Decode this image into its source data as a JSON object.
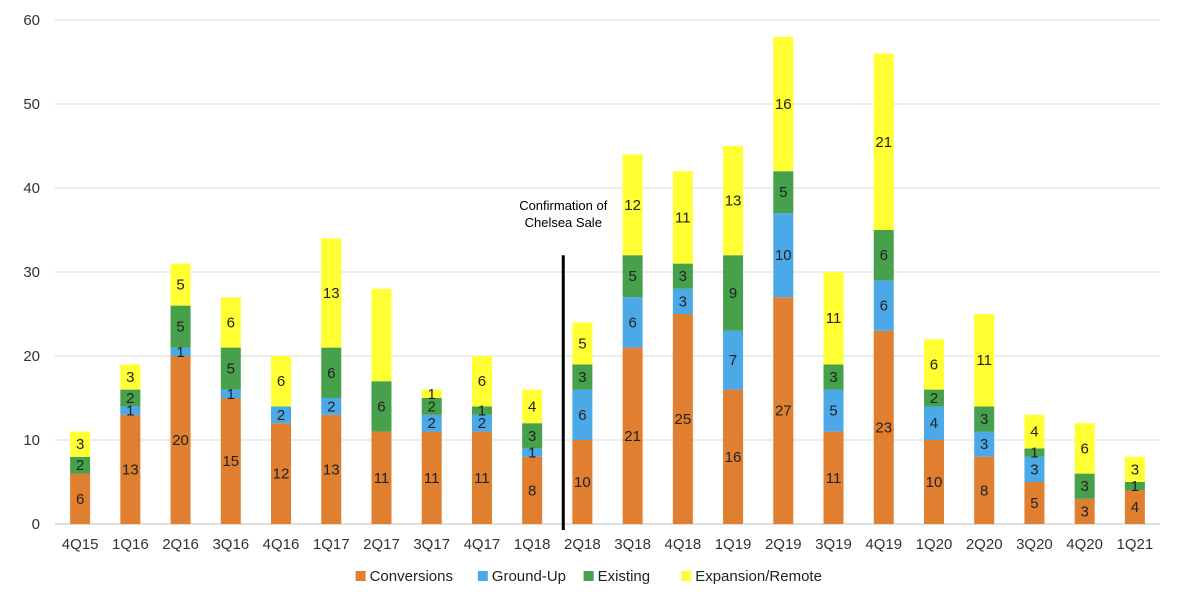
{
  "chart_data": {
    "type": "bar",
    "stacked": true,
    "title": "",
    "xlabel": "",
    "ylabel": "",
    "ylim": [
      0,
      60
    ],
    "yticks": [
      0,
      10,
      20,
      30,
      40,
      50,
      60
    ],
    "grid": "horizontal",
    "legend": "bottom",
    "categories": [
      "4Q15",
      "1Q16",
      "2Q16",
      "3Q16",
      "4Q16",
      "1Q17",
      "2Q17",
      "3Q17",
      "4Q17",
      "1Q18",
      "2Q18",
      "3Q18",
      "4Q18",
      "1Q19",
      "2Q19",
      "3Q19",
      "4Q19",
      "1Q20",
      "2Q20",
      "3Q20",
      "4Q20",
      "1Q21"
    ],
    "series": [
      {
        "name": "Conversions",
        "color": "#E07F2F",
        "values": [
          6,
          13,
          20,
          15,
          12,
          13,
          11,
          11,
          11,
          8,
          10,
          21,
          25,
          16,
          27,
          11,
          23,
          10,
          8,
          5,
          3,
          4
        ]
      },
      {
        "name": "Ground-Up",
        "color": "#4BA9E8",
        "values": [
          0,
          1,
          1,
          1,
          2,
          2,
          0,
          2,
          2,
          1,
          6,
          6,
          3,
          7,
          10,
          5,
          6,
          4,
          3,
          3,
          0,
          0
        ]
      },
      {
        "name": "Existing",
        "color": "#47A04B",
        "values": [
          2,
          2,
          5,
          5,
          0,
          6,
          6,
          2,
          1,
          3,
          3,
          5,
          3,
          9,
          5,
          3,
          6,
          2,
          3,
          1,
          3,
          1
        ]
      },
      {
        "name": "Expansion/Remote",
        "color": "#FFFF33",
        "values": [
          3,
          3,
          5,
          6,
          6,
          13,
          11,
          1,
          6,
          4,
          5,
          12,
          11,
          13,
          16,
          11,
          21,
          6,
          11,
          4,
          6,
          3
        ]
      }
    ],
    "labels": {
      "Conversions": [
        "6",
        "13",
        "20",
        "15",
        "12",
        "13",
        "11",
        "11",
        "11",
        "8",
        "10",
        "21",
        "25",
        "16",
        "27",
        "11",
        "23",
        "10",
        "8",
        "5",
        "3",
        "4"
      ],
      "Ground-Up": [
        "",
        "1",
        "1",
        "1",
        "2",
        "2",
        "",
        "2",
        "2",
        "1",
        "6",
        "6",
        "3",
        "7",
        "10",
        "5",
        "6",
        "4",
        "3",
        "3",
        "",
        ""
      ],
      "Existing": [
        "2",
        "2",
        "5",
        "5",
        "",
        "6",
        "6",
        "2",
        "1",
        "3",
        "3",
        "5",
        "3",
        "9",
        "5",
        "3",
        "6",
        "2",
        "3",
        "1",
        "3",
        "1"
      ],
      "Expansion/Remote": [
        "3",
        "3",
        "5",
        "6",
        "6",
        "13",
        "",
        "1",
        "6",
        "4",
        "5",
        "12",
        "11",
        "13",
        "16",
        "11",
        "21",
        "6",
        "11",
        "4",
        "6",
        "3"
      ]
    },
    "annotation": {
      "lines": [
        "Confirmation of",
        "Chelsea Sale"
      ],
      "between": [
        "1Q18",
        "2Q18"
      ],
      "y_from": 0,
      "y_to": 32
    }
  }
}
